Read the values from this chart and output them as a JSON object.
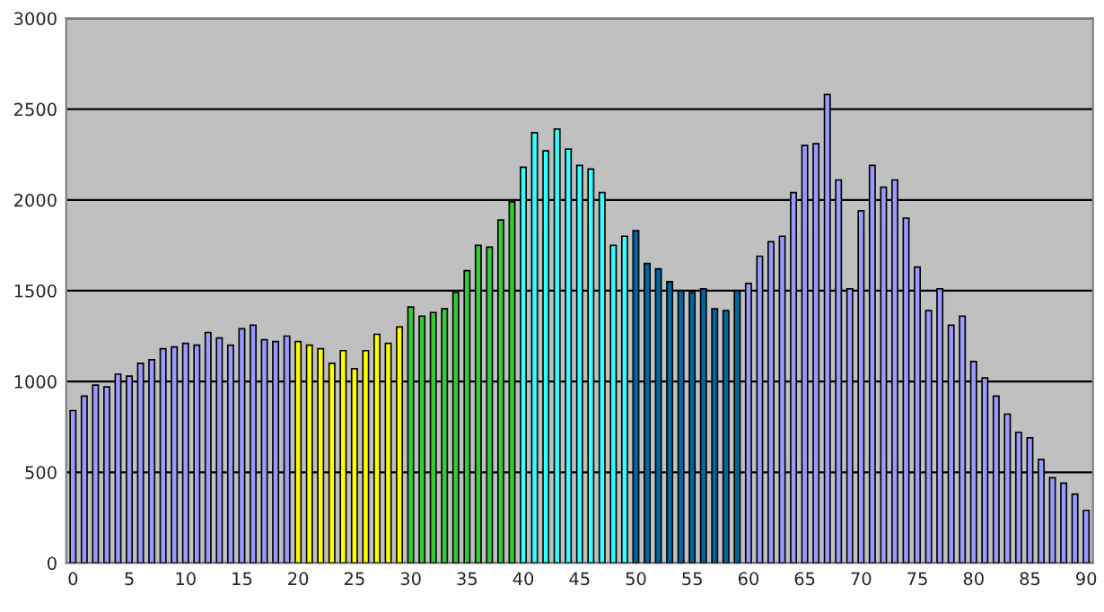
{
  "chart_data": {
    "type": "bar",
    "x": [
      0,
      1,
      2,
      3,
      4,
      5,
      6,
      7,
      8,
      9,
      10,
      11,
      12,
      13,
      14,
      15,
      16,
      17,
      18,
      19,
      20,
      21,
      22,
      23,
      24,
      25,
      26,
      27,
      28,
      29,
      30,
      31,
      32,
      33,
      34,
      35,
      36,
      37,
      38,
      39,
      40,
      41,
      42,
      43,
      44,
      45,
      46,
      47,
      48,
      49,
      50,
      51,
      52,
      53,
      54,
      55,
      56,
      57,
      58,
      59,
      60,
      61,
      62,
      63,
      64,
      65,
      66,
      67,
      68,
      69,
      70,
      71,
      72,
      73,
      74,
      75,
      76,
      77,
      78,
      79,
      80,
      81,
      82,
      83,
      84,
      85,
      86,
      87,
      88,
      89,
      90
    ],
    "values": [
      840,
      920,
      980,
      970,
      1040,
      1030,
      1100,
      1120,
      1180,
      1190,
      1210,
      1200,
      1270,
      1240,
      1200,
      1290,
      1310,
      1230,
      1220,
      1250,
      1220,
      1200,
      1180,
      1100,
      1170,
      1070,
      1170,
      1260,
      1210,
      1300,
      1410,
      1360,
      1380,
      1400,
      1490,
      1610,
      1750,
      1740,
      1890,
      1990,
      2180,
      2370,
      2270,
      2390,
      2280,
      2190,
      2170,
      2040,
      1750,
      1800,
      1830,
      1650,
      1620,
      1550,
      1500,
      1490,
      1510,
      1400,
      1390,
      1500,
      1540,
      1690,
      1770,
      1800,
      2040,
      2300,
      2310,
      2580,
      2110,
      1510,
      1940,
      2190,
      2070,
      2110,
      1900,
      1630,
      1390,
      1510,
      1310,
      1360,
      1110,
      1020,
      920,
      820,
      720,
      690,
      570,
      470,
      440,
      380,
      290
    ],
    "colors": [
      "#9999ff",
      "#9999ff",
      "#9999ff",
      "#9999ff",
      "#9999ff",
      "#9999ff",
      "#9999ff",
      "#9999ff",
      "#9999ff",
      "#9999ff",
      "#9999ff",
      "#9999ff",
      "#9999ff",
      "#9999ff",
      "#9999ff",
      "#9999ff",
      "#9999ff",
      "#9999ff",
      "#9999ff",
      "#9999ff",
      "#ffff00",
      "#ffff00",
      "#ffff00",
      "#ffff00",
      "#ffff00",
      "#ffff00",
      "#ffff00",
      "#ffff00",
      "#ffff00",
      "#ffff00",
      "#33cc33",
      "#33cc33",
      "#33cc33",
      "#33cc33",
      "#33cc33",
      "#33cc33",
      "#33cc33",
      "#33cc33",
      "#33cc33",
      "#33cc33",
      "#33ffff",
      "#33ffff",
      "#33ffff",
      "#33ffff",
      "#33ffff",
      "#33ffff",
      "#33ffff",
      "#33ffff",
      "#33ffff",
      "#33ffff",
      "#0066a0",
      "#0066a0",
      "#0066a0",
      "#0066a0",
      "#0066a0",
      "#0066a0",
      "#0066a0",
      "#0066a0",
      "#0066a0",
      "#0066a0",
      "#9999ff",
      "#9999ff",
      "#9999ff",
      "#9999ff",
      "#9999ff",
      "#9999ff",
      "#9999ff",
      "#9999ff",
      "#9999ff",
      "#9999ff",
      "#9999ff",
      "#9999ff",
      "#9999ff",
      "#9999ff",
      "#9999ff",
      "#9999ff",
      "#9999ff",
      "#9999ff",
      "#9999ff",
      "#9999ff",
      "#9999ff",
      "#9999ff",
      "#9999ff",
      "#9999ff",
      "#9999ff",
      "#9999ff",
      "#9999ff",
      "#9999ff",
      "#9999ff",
      "#9999ff",
      "#9999ff"
    ],
    "xlim": [
      -0.6,
      90.6
    ],
    "xticks": [
      0,
      5,
      10,
      15,
      20,
      25,
      30,
      35,
      40,
      45,
      50,
      55,
      60,
      65,
      70,
      75,
      80,
      85,
      90
    ],
    "ylim": [
      0,
      3000
    ],
    "yticks": [
      0,
      500,
      1000,
      1500,
      2000,
      2500,
      3000
    ],
    "grid": "y"
  }
}
